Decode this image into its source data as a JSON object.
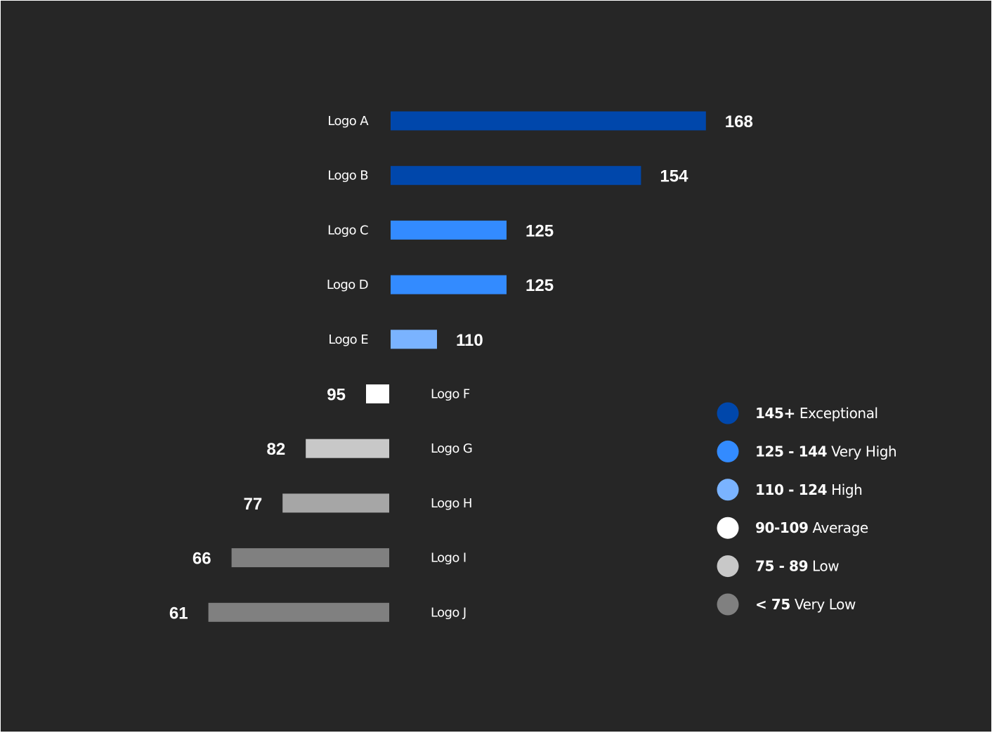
{
  "chart_data": {
    "type": "bar",
    "orientation": "horizontal-diverging",
    "baseline": 100,
    "title": "",
    "xlabel": "",
    "ylabel": "",
    "categories": [
      "Logo A",
      "Logo B",
      "Logo C",
      "Logo D",
      "Logo E",
      "Logo F",
      "Logo G",
      "Logo H",
      "Logo I",
      "Logo J"
    ],
    "values": [
      168,
      154,
      125,
      125,
      110,
      95,
      82,
      77,
      66,
      61
    ],
    "value_labels": [
      "168",
      "154",
      "125",
      "125",
      "110",
      "95",
      "82",
      "77",
      "66",
      "61"
    ],
    "bar_colors": [
      "#0047AB",
      "#0047AB",
      "#338BFF",
      "#338BFF",
      "#7AB3FF",
      "#FFFFFF",
      "#C8C8C8",
      "#A6A6A6",
      "#808080",
      "#808080"
    ],
    "legend": {
      "position": "right",
      "items": [
        {
          "bold": "145+",
          "rest": " Exceptional",
          "color": "#0047AB"
        },
        {
          "bold": "125 - 144",
          "rest": " Very High",
          "color": "#338BFF"
        },
        {
          "bold": "110 - 124",
          "rest": " High",
          "color": "#7AB3FF"
        },
        {
          "bold": "90-109",
          "rest": " Average",
          "color": "#FFFFFF"
        },
        {
          "bold": "75 - 89",
          "rest": " Low",
          "color": "#C8C8C8"
        },
        {
          "bold": "< 75",
          "rest": " Very Low",
          "color": "#808080"
        }
      ]
    },
    "grid": false
  },
  "colors": {
    "background": "#262626",
    "text": "#FFFFFF"
  }
}
